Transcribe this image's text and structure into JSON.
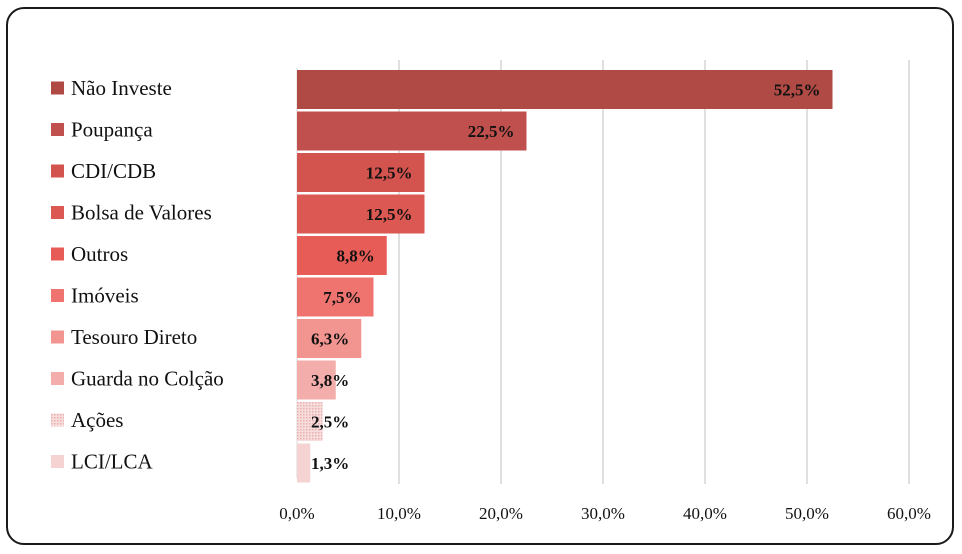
{
  "chart_data": {
    "type": "bar",
    "orientation": "horizontal",
    "categories": [
      "Não Investe",
      "Poupança",
      "CDI/CDB",
      "Bolsa de Valores",
      "Outros",
      "Imóveis",
      "Tesouro Direto",
      "Guarda no Colção",
      "Ações",
      "LCI/LCA"
    ],
    "values": [
      52.5,
      22.5,
      12.5,
      12.5,
      8.8,
      7.5,
      6.3,
      3.8,
      2.5,
      1.3
    ],
    "value_labels": [
      "52,5%",
      "22,5%",
      "12,5%",
      "12,5%",
      "8,8%",
      "7,5%",
      "6,3%",
      "3,8%",
      "2,5%",
      "1,3%"
    ],
    "colors": [
      "#b04a45",
      "#c0504d",
      "#d3534e",
      "#dc5852",
      "#e85c57",
      "#ef7470",
      "#f29591",
      "#f3aeab",
      "#f4c3c1",
      "#f6d3d3"
    ],
    "xlim": [
      0,
      60
    ],
    "x_ticks": [
      0,
      10,
      20,
      30,
      40,
      50,
      60
    ],
    "x_tick_labels": [
      "0,0%",
      "10,0%",
      "20,0%",
      "30,0%",
      "40,0%",
      "50,0%",
      "60,0%"
    ],
    "grid": true,
    "legend_position": "left",
    "title": "",
    "xlabel": "",
    "ylabel": ""
  }
}
